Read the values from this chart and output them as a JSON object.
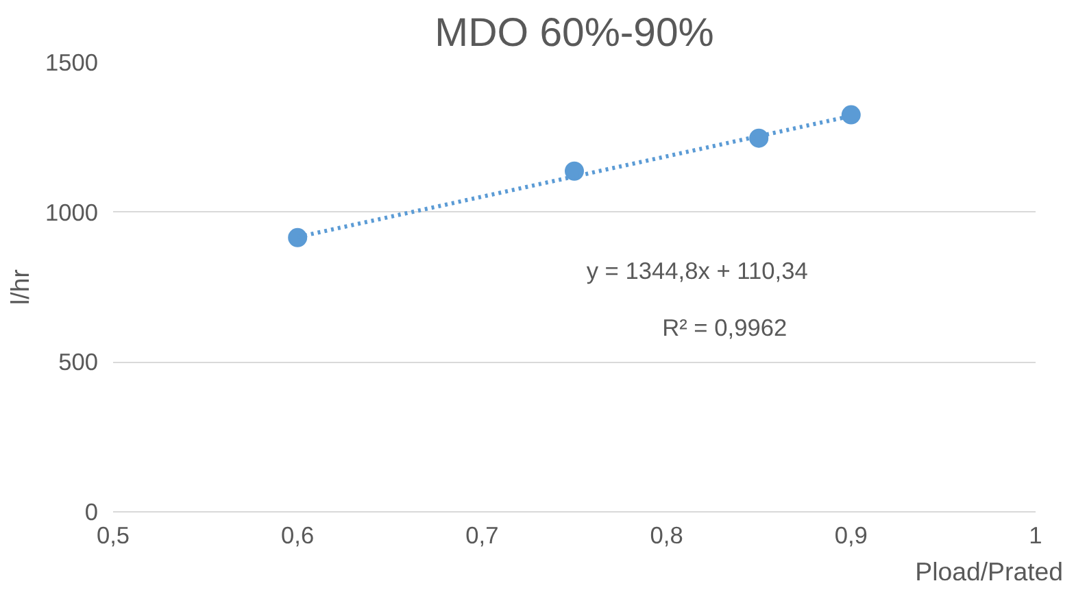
{
  "chart_data": {
    "type": "scatter",
    "title": "MDO 60%-90%",
    "xlabel": "Pload/Prated",
    "ylabel": "l/hr",
    "x": [
      0.6,
      0.75,
      0.85,
      0.9
    ],
    "series": [
      {
        "color": "#5b9bd5",
        "values": [
          915,
          1137,
          1247,
          1325
        ],
        "marker": "circle"
      },
      {
        "type": "line",
        "color": "#5b9bd5",
        "x": [
          0.6,
          0.9
        ],
        "values": [
          917,
          1321
        ],
        "line_style": "dotted"
      }
    ],
    "annotations": [
      "y = 1344,8x + 110,34",
      "R² = 0,9962"
    ],
    "xlim": [
      0.5,
      1
    ],
    "ylim": [
      0,
      1500
    ],
    "xticks": [
      {
        "value": 0.5,
        "label": "0,5"
      },
      {
        "value": 0.6,
        "label": "0,6"
      },
      {
        "value": 0.7,
        "label": "0,7"
      },
      {
        "value": 0.8,
        "label": "0,8"
      },
      {
        "value": 0.9,
        "label": "0,9"
      },
      {
        "value": 1,
        "label": "1"
      }
    ],
    "yticks": [
      0,
      500,
      1000,
      1500
    ],
    "grid": "y"
  }
}
